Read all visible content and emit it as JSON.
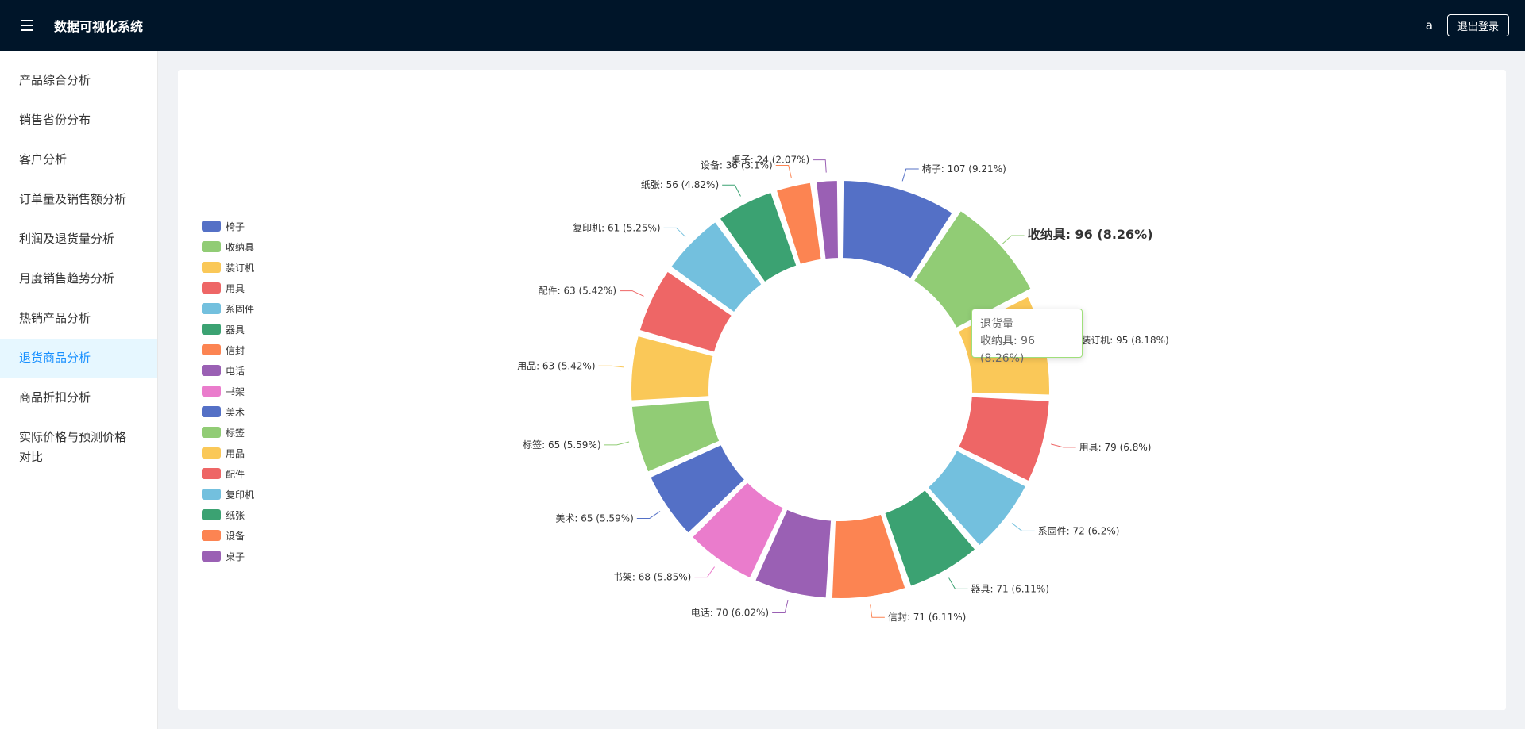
{
  "app": {
    "title": "数据可视化系统",
    "menu_icon": "hamburger-icon"
  },
  "user": {
    "name": "a",
    "logout_label": "退出登录"
  },
  "sidebar": {
    "items": [
      {
        "label": "产品综合分析",
        "active": false
      },
      {
        "label": "销售省份分布",
        "active": false
      },
      {
        "label": "客户分析",
        "active": false
      },
      {
        "label": "订单量及销售额分析",
        "active": false
      },
      {
        "label": "利润及退货量分析",
        "active": false
      },
      {
        "label": "月度销售趋势分析",
        "active": false
      },
      {
        "label": "热销产品分析",
        "active": false
      },
      {
        "label": "退货商品分析",
        "active": true
      },
      {
        "label": "商品折扣分析",
        "active": false
      },
      {
        "label": "实际价格与预测价格对比",
        "active": false
      }
    ]
  },
  "colors": {
    "topbar": "#001529",
    "active_text": "#1890ff",
    "active_bg": "#e6f7ff"
  },
  "tooltip": {
    "title": "退货量",
    "label": "收纳具:",
    "value_text": "96 (8.26%)"
  },
  "chart_data": {
    "type": "pie",
    "variant": "donut",
    "legend_position": "left",
    "highlighted": "收纳具",
    "slices": [
      {
        "name": "椅子",
        "value": 107,
        "percent": "9.21%",
        "color": "#5470c6"
      },
      {
        "name": "收纳具",
        "value": 96,
        "percent": "8.26%",
        "color": "#91cc75"
      },
      {
        "name": "装订机",
        "value": 95,
        "percent": "8.18%",
        "color": "#fac858"
      },
      {
        "name": "用具",
        "value": 79,
        "percent": "6.8%",
        "color": "#ee6666"
      },
      {
        "name": "系固件",
        "value": 72,
        "percent": "6.2%",
        "color": "#73c0de"
      },
      {
        "name": "器具",
        "value": 71,
        "percent": "6.11%",
        "color": "#3ba272"
      },
      {
        "name": "信封",
        "value": 71,
        "percent": "6.11%",
        "color": "#fc8452"
      },
      {
        "name": "电话",
        "value": 70,
        "percent": "6.02%",
        "color": "#9a60b4"
      },
      {
        "name": "书架",
        "value": 68,
        "percent": "5.85%",
        "color": "#ea7ccc"
      },
      {
        "name": "美术",
        "value": 65,
        "percent": "5.59%",
        "color": "#5470c6"
      },
      {
        "name": "标签",
        "value": 65,
        "percent": "5.59%",
        "color": "#91cc75"
      },
      {
        "name": "用品",
        "value": 63,
        "percent": "5.42%",
        "color": "#fac858"
      },
      {
        "name": "配件",
        "value": 63,
        "percent": "5.42%",
        "color": "#ee6666"
      },
      {
        "name": "复印机",
        "value": 61,
        "percent": "5.25%",
        "color": "#73c0de"
      },
      {
        "name": "纸张",
        "value": 56,
        "percent": "4.82%",
        "color": "#3ba272"
      },
      {
        "name": "设备",
        "value": 36,
        "percent": "3.1%",
        "color": "#fc8452"
      },
      {
        "name": "桌子",
        "value": 24,
        "percent": "2.07%",
        "color": "#9a60b4"
      }
    ]
  }
}
